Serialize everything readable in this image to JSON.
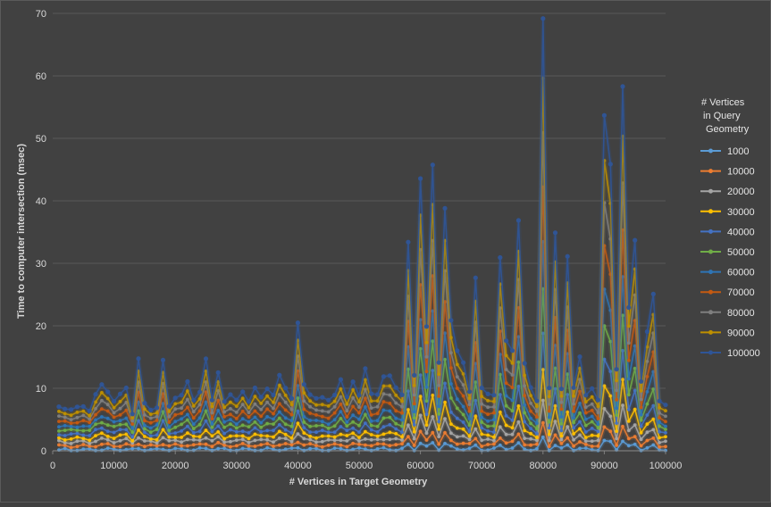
{
  "chart_data": {
    "type": "line",
    "title": "",
    "xlabel": "# Vertices in  Target Geometry",
    "ylabel": "Time to computer intersection (msec)",
    "xlim": [
      0,
      100000
    ],
    "ylim": [
      0,
      70
    ],
    "x_ticks": [
      "0",
      "10000",
      "20000",
      "30000",
      "40000",
      "50000",
      "60000",
      "70000",
      "80000",
      "90000",
      "100000"
    ],
    "y_ticks": [
      "0",
      "10",
      "20",
      "30",
      "40",
      "50",
      "60",
      "70"
    ],
    "grid": "horizontal",
    "legend_title": "# Vertices\nin Query\nGeometry",
    "legend_position": "right",
    "x": [
      1000,
      2000,
      3000,
      4000,
      5000,
      6000,
      7000,
      8000,
      9000,
      10000,
      11000,
      12000,
      13000,
      14000,
      15000,
      16000,
      17000,
      18000,
      19000,
      20000,
      21000,
      22000,
      23000,
      24000,
      25000,
      26000,
      27000,
      28000,
      29000,
      30000,
      31000,
      32000,
      33000,
      34000,
      35000,
      36000,
      37000,
      38000,
      39000,
      40000,
      41000,
      42000,
      43000,
      44000,
      45000,
      46000,
      47000,
      48000,
      49000,
      50000,
      51000,
      52000,
      53000,
      54000,
      55000,
      56000,
      57000,
      58000,
      59000,
      60000,
      61000,
      62000,
      63000,
      64000,
      65000,
      66000,
      67000,
      68000,
      69000,
      70000,
      71000,
      72000,
      73000,
      74000,
      75000,
      76000,
      77000,
      78000,
      79000,
      80000,
      81000,
      82000,
      83000,
      84000,
      85000,
      86000,
      87000,
      88000,
      89000,
      90000,
      91000,
      92000,
      93000,
      94000,
      95000,
      96000,
      97000,
      98000,
      99000,
      100000
    ],
    "top_series_values": [
      7.0,
      6.8,
      6.6,
      6.9,
      7.1,
      6.5,
      9.0,
      10.5,
      9.5,
      8.0,
      9.0,
      10.0,
      6.0,
      14.8,
      7.5,
      6.5,
      7.0,
      14.5,
      7.0,
      8.5,
      9.0,
      11.0,
      8.0,
      9.5,
      14.8,
      8.0,
      12.5,
      8.0,
      9.0,
      8.0,
      9.5,
      8.0,
      10.0,
      8.5,
      10.0,
      9.0,
      12.0,
      10.0,
      8.5,
      20.5,
      10.5,
      9.0,
      8.5,
      8.5,
      8.0,
      9.0,
      11.5,
      8.5,
      11.0,
      9.0,
      13.2,
      9.0,
      9.0,
      12.0,
      12.0,
      10.0,
      9.0,
      33.5,
      12.0,
      43.5,
      20.0,
      45.8,
      14.0,
      38.8,
      21.0,
      16.0,
      14.0,
      9.5,
      27.8,
      10.0,
      9.0,
      9.0,
      31.0,
      17.5,
      16.0,
      37.0,
      14.0,
      10.0,
      8.0,
      69.3,
      10.0,
      34.8,
      10.0,
      31.2,
      10.0,
      15.0,
      9.0,
      10.0,
      8.0,
      53.7,
      46.0,
      13.0,
      58.2,
      23.0,
      33.8,
      11.0,
      19.0,
      25.2,
      8.0,
      7.2
    ],
    "series": [
      {
        "name": "1000",
        "color": "#5b9bd5",
        "scale": 0.03,
        "base": 0.1
      },
      {
        "name": "10000",
        "color": "#ed7d31",
        "scale": 0.06,
        "base": 0.7
      },
      {
        "name": "20000",
        "color": "#a5a5a5",
        "scale": 0.11,
        "base": 1.3
      },
      {
        "name": "30000",
        "color": "#ffc000",
        "scale": 0.18,
        "base": 1.8
      },
      {
        "name": "40000",
        "color": "#4472c4",
        "scale": 0.26,
        "base": 2.4
      },
      {
        "name": "50000",
        "color": "#70ad47",
        "scale": 0.36,
        "base": 3.0
      },
      {
        "name": "60000",
        "color": "#2e75b6",
        "scale": 0.47,
        "base": 3.5
      },
      {
        "name": "70000",
        "color": "#c55a11",
        "scale": 0.6,
        "base": 4.1
      },
      {
        "name": "80000",
        "color": "#7f7f7f",
        "scale": 0.73,
        "base": 4.7
      },
      {
        "name": "90000",
        "color": "#bf9000",
        "scale": 0.86,
        "base": 5.3
      },
      {
        "name": "100000",
        "color": "#2f5597",
        "scale": 1.0,
        "base": 6.0
      }
    ]
  }
}
